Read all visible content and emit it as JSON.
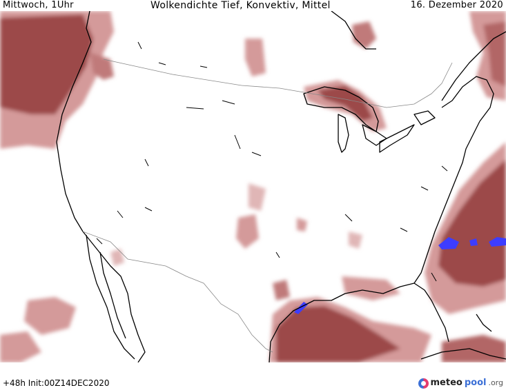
{
  "header": {
    "left": "Mittwoch, 1Uhr",
    "center": "Wolkendichte   Tief, Konvektiv, Mittel",
    "right": "16. Dezember 2020"
  },
  "footer": {
    "left": "+48h  Init:00Z14DEC2020",
    "logo_part1": "meteo",
    "logo_part2": "pool",
    "logo_part3": ".org"
  },
  "colors": {
    "cloud_dark": "#9c4a4a",
    "cloud_light": "#d49a9a",
    "convective": "#3d3dff",
    "coastline": "#000000",
    "border": "#888888",
    "background": "#ffffff"
  },
  "icons": {
    "logo": "meteopool-logo-icon"
  }
}
